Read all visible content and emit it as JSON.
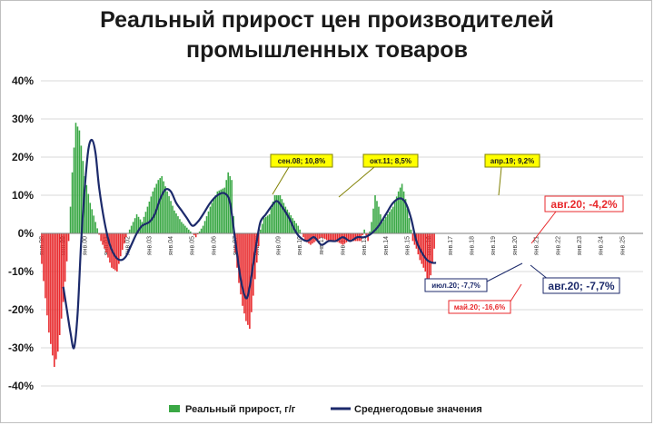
{
  "title_line1": "Реальный прирост цен производителей",
  "title_line2": "промышленных товаров",
  "chart_data": {
    "type": "bar+line",
    "ylim": [
      -40,
      40
    ],
    "y_ticks": [
      40,
      30,
      20,
      10,
      0,
      -10,
      -20,
      -30,
      -40
    ],
    "y_tick_labels": [
      "40%",
      "30%",
      "20%",
      "10%",
      "0%",
      "-10%",
      "-20%",
      "-30%",
      "-40%"
    ],
    "x_tick_labels": [
      "янв.98",
      "янв.99",
      "янв.00",
      "янв.01",
      "янв.02",
      "янв.03",
      "янв.04",
      "янв.05",
      "янв.06",
      "янв.07",
      "янв.08",
      "янв.09",
      "янв.10",
      "янв.11",
      "янв.12",
      "янв.13",
      "янв.14",
      "янв.15",
      "янв.16",
      "янв.17",
      "янв.18",
      "янв.19",
      "янв.20",
      "янв.21",
      "янв.22",
      "янв.23",
      "янв.24",
      "янв.25"
    ],
    "grid": true,
    "legend_position": "bottom",
    "positive_color": "#3aa845",
    "negative_color": "#e8292c",
    "line_color": "#1c2a6b",
    "series": [
      {
        "name": "Реальный прирост, г/г",
        "kind": "bar",
        "start": "1998-01",
        "points": [
          [
            0,
            -8
          ],
          [
            4,
            -26
          ],
          [
            7,
            -35
          ],
          [
            9,
            -31
          ],
          [
            12,
            -18
          ],
          [
            15,
            -2
          ],
          [
            17,
            16
          ],
          [
            19,
            29
          ],
          [
            21,
            27
          ],
          [
            24,
            15
          ],
          [
            27,
            8
          ],
          [
            30,
            3
          ],
          [
            33,
            -2
          ],
          [
            36,
            -5
          ],
          [
            39,
            -9
          ],
          [
            42,
            -10
          ],
          [
            44,
            -6
          ],
          [
            47,
            -1
          ],
          [
            50,
            2
          ],
          [
            53,
            5
          ],
          [
            56,
            3
          ],
          [
            59,
            7
          ],
          [
            62,
            11
          ],
          [
            65,
            14
          ],
          [
            67,
            15
          ],
          [
            70,
            11
          ],
          [
            74,
            6
          ],
          [
            78,
            3
          ],
          [
            82,
            1
          ],
          [
            86,
            -1
          ],
          [
            90,
            2
          ],
          [
            94,
            7
          ],
          [
            98,
            11
          ],
          [
            102,
            12
          ],
          [
            104,
            16
          ],
          [
            106,
            14
          ],
          [
            108,
            -5
          ],
          [
            110,
            -13
          ],
          [
            112,
            -19
          ],
          [
            114,
            -23
          ],
          [
            116,
            -25
          ],
          [
            119,
            -12
          ],
          [
            122,
            1
          ],
          [
            124,
            4
          ],
          [
            127,
            5
          ],
          [
            130,
            10
          ],
          [
            133,
            10
          ],
          [
            136,
            7
          ],
          [
            140,
            4
          ],
          [
            143,
            2
          ],
          [
            147,
            -2
          ],
          [
            150,
            -3
          ],
          [
            153,
            -2
          ],
          [
            156,
            -1
          ],
          [
            160,
            -2
          ],
          [
            164,
            -2
          ],
          [
            168,
            -3
          ],
          [
            171,
            -2
          ],
          [
            175,
            -2
          ],
          [
            178,
            -2
          ],
          [
            180,
            1
          ],
          [
            182,
            -2
          ],
          [
            184,
            3
          ],
          [
            186,
            10
          ],
          [
            188,
            7
          ],
          [
            190,
            3
          ],
          [
            193,
            5
          ],
          [
            196,
            7
          ],
          [
            199,
            11
          ],
          [
            201,
            13
          ],
          [
            203,
            9
          ],
          [
            205,
            4
          ],
          [
            207,
            -2
          ],
          [
            209,
            -4
          ],
          [
            211,
            -7
          ],
          [
            214,
            -10
          ],
          [
            216,
            -14
          ],
          [
            218,
            -8
          ],
          [
            219,
            -4
          ]
        ]
      },
      {
        "name": "Среднегодовые значения",
        "kind": "line",
        "start": "1998-01",
        "points": [
          [
            12,
            -14
          ],
          [
            14,
            -20
          ],
          [
            16,
            -26
          ],
          [
            18,
            -30
          ],
          [
            20,
            -21
          ],
          [
            22,
            -2
          ],
          [
            24,
            12
          ],
          [
            26,
            22
          ],
          [
            28,
            24.5
          ],
          [
            30,
            21
          ],
          [
            32,
            12
          ],
          [
            35,
            3
          ],
          [
            38,
            -3
          ],
          [
            41,
            -6
          ],
          [
            44,
            -7
          ],
          [
            47,
            -6
          ],
          [
            50,
            -3
          ],
          [
            53,
            0
          ],
          [
            56,
            2
          ],
          [
            60,
            3
          ],
          [
            63,
            5
          ],
          [
            66,
            9
          ],
          [
            69,
            11.5
          ],
          [
            72,
            11
          ],
          [
            75,
            8
          ],
          [
            78,
            6
          ],
          [
            81,
            4
          ],
          [
            84,
            2
          ],
          [
            87,
            3
          ],
          [
            90,
            5
          ],
          [
            94,
            8
          ],
          [
            98,
            10
          ],
          [
            102,
            10.5
          ],
          [
            105,
            8
          ],
          [
            108,
            -2
          ],
          [
            111,
            -12
          ],
          [
            114,
            -17
          ],
          [
            116,
            -14
          ],
          [
            118,
            -8
          ],
          [
            120,
            -2
          ],
          [
            122,
            3
          ],
          [
            125,
            5
          ],
          [
            128,
            7
          ],
          [
            131,
            8.5
          ],
          [
            134,
            7
          ],
          [
            138,
            4
          ],
          [
            141,
            1
          ],
          [
            144,
            -1
          ],
          [
            148,
            -2
          ],
          [
            152,
            -1
          ],
          [
            156,
            -3
          ],
          [
            160,
            -2
          ],
          [
            164,
            -2
          ],
          [
            168,
            -1
          ],
          [
            172,
            -2
          ],
          [
            176,
            -1
          ],
          [
            180,
            -1
          ],
          [
            184,
            0
          ],
          [
            188,
            2
          ],
          [
            192,
            5
          ],
          [
            196,
            8
          ],
          [
            200,
            9.2
          ],
          [
            203,
            8
          ],
          [
            206,
            4
          ],
          [
            209,
            -2
          ],
          [
            212,
            -5
          ],
          [
            215,
            -7
          ],
          [
            218,
            -7.7
          ],
          [
            220,
            -7.7
          ]
        ]
      }
    ],
    "annotations": [
      {
        "text": "сен.08; 10,8%",
        "style": "yellow"
      },
      {
        "text": "окт.11; 8,5%",
        "style": "yellow"
      },
      {
        "text": "апр.19; 9,2%",
        "style": "yellow"
      },
      {
        "text": "авг.20; -4,2%",
        "style": "red-box"
      },
      {
        "text": "июл.20; -7,7%",
        "style": "blue-box"
      },
      {
        "text": "май.20; -16,6%",
        "style": "red-box"
      },
      {
        "text": "авг.20; -7,7%",
        "style": "blue-box-large"
      }
    ]
  },
  "legend": {
    "bar_label": "Реальный прирост, г/г",
    "line_label": "Среднегодовые значения"
  }
}
